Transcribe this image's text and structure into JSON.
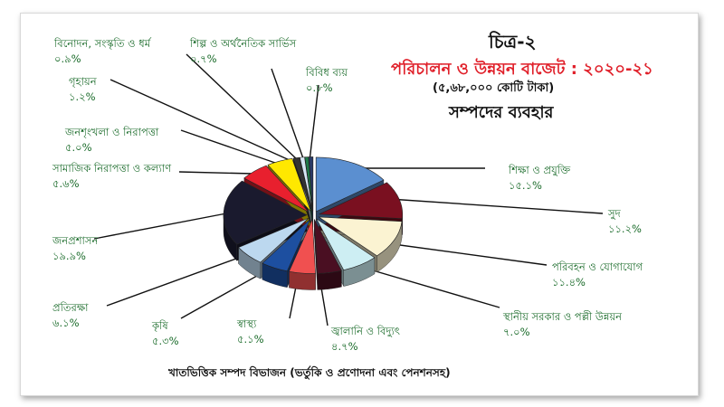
{
  "figure_number": "চিত্র-২",
  "title": "পরিচালন ও উন্নয়ন বাজেট : ২০২০-২১",
  "subtitle": "(৫,৬৮,০০০ কোটি টাকা)",
  "heading": "সম্পদের ব্যবহার",
  "footer": "খাতভিত্তিক সম্পদ বিভাজন (ভর্তুকি ও প্রণোদনা এবং পেনশনসহ)",
  "chart_data": {
    "type": "pie",
    "style": "3d-exploded",
    "unit": "%",
    "slices": [
      {
        "label": "শিক্ষা ও প্রযুক্তি",
        "value_text": "১৫.১%",
        "value": 15.1,
        "color": "#5b8fd0"
      },
      {
        "label": "সুদ",
        "value_text": "১১.২%",
        "value": 11.2,
        "color": "#7a1020"
      },
      {
        "label": "পরিবহন ও যোগাযোগ",
        "value_text": "১১.৪%",
        "value": 11.4,
        "color": "#fbf3d2"
      },
      {
        "label": "স্থানীয় সরকার ও পল্লী উন্নয়ন",
        "value_text": "৭.০%",
        "value": 7.0,
        "color": "#cdeef3"
      },
      {
        "label": "জ্বালানি ও বিদ্যুৎ",
        "value_text": "৪.৭%",
        "value": 4.7,
        "color": "#4a0f22"
      },
      {
        "label": "স্বাস্থ্য",
        "value_text": "৫.১%",
        "value": 5.1,
        "color": "#f05050"
      },
      {
        "label": "কৃষি",
        "value_text": "৫.৩%",
        "value": 5.3,
        "color": "#1d4fa0"
      },
      {
        "label": "প্রতিরক্ষা",
        "value_text": "৬.১%",
        "value": 6.1,
        "color": "#bcd8ef"
      },
      {
        "label": "জনপ্রশাসন",
        "value_text": "১৯.৯%",
        "value": 19.9,
        "color": "#1a1a2e"
      },
      {
        "label": "সামাজিক নিরাপত্তা ও কল্যাণ",
        "value_text": "৫.৬%",
        "value": 5.6,
        "color": "#e8202e"
      },
      {
        "label": "জনশৃংখলা ও নিরাপত্তা",
        "value_text": "৫.০%",
        "value": 5.0,
        "color": "#ffe800"
      },
      {
        "label": "গৃহায়ন",
        "value_text": "১.২%",
        "value": 1.2,
        "color": "#333333"
      },
      {
        "label": "বিনোদন, সংস্কৃতি ও ধর্ম",
        "value_text": "০.৯%",
        "value": 0.9,
        "color": "#d6e6f4"
      },
      {
        "label": "শিল্প ও অর্থনৈতিক সার্ভিস",
        "value_text": "০.৭%",
        "value": 0.7,
        "color": "#1f7a4a"
      },
      {
        "label": "বিবিধ ব্যয়",
        "value_text": "০.৮%",
        "value": 0.8,
        "color": "#2a3a66"
      }
    ]
  }
}
